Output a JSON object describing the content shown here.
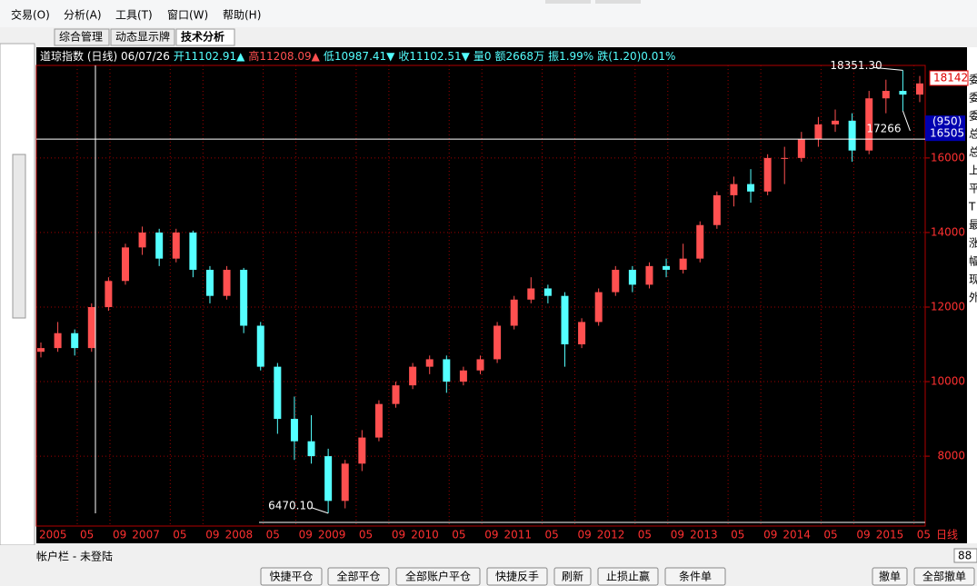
{
  "menu": [
    "交易(O)",
    "分析(A)",
    "工具(T)",
    "窗口(W)",
    "帮助(H)"
  ],
  "tabs": [
    "综合管理",
    "动态显示牌",
    "技术分析"
  ],
  "info_line": [
    {
      "text": "道琼指数 (日线) 06/07/26",
      "color": "#ffffff"
    },
    {
      "text": "开11102.91▲",
      "color": "#54ffff"
    },
    {
      "text": "高11208.09▲",
      "color": "#ff5050"
    },
    {
      "text": "低10987.41▼",
      "color": "#54ffff"
    },
    {
      "text": "收11102.51▼",
      "color": "#54ffff"
    },
    {
      "text": "量0",
      "color": "#54ffff"
    },
    {
      "text": "额2668万",
      "color": "#54ffff"
    },
    {
      "text": "振1.99%",
      "color": "#54ffff"
    },
    {
      "text": "跌(1.20)0.01%",
      "color": "#54ffff"
    }
  ],
  "chart_data": {
    "type": "candlestick",
    "ylim": [
      6150,
      18410
    ],
    "yticks": [
      8000,
      10000,
      12000,
      14000,
      16000
    ],
    "up_color": "#ff5050",
    "down_color": "#54ffff",
    "grid": true,
    "x_labels": [
      "2005",
      "05",
      "09",
      "2007",
      "05",
      "09",
      "2008",
      "05",
      "09",
      "2009",
      "05",
      "09",
      "2010",
      "05",
      "09",
      "2011",
      "05",
      "09",
      "2012",
      "05",
      "09",
      "2013",
      "05",
      "09",
      "2014",
      "05",
      "09",
      "2015",
      "05"
    ],
    "period_label": "日线",
    "ohlc": [
      [
        10800,
        11050,
        10650,
        10900
      ],
      [
        10900,
        11600,
        10800,
        11300
      ],
      [
        11300,
        11400,
        10700,
        10900
      ],
      [
        10900,
        12100,
        10800,
        12000
      ],
      [
        12000,
        12800,
        11900,
        12700
      ],
      [
        12700,
        13700,
        12600,
        13600
      ],
      [
        13600,
        14160,
        13400,
        14000
      ],
      [
        14000,
        14100,
        13100,
        13300
      ],
      [
        13300,
        14100,
        13200,
        14000
      ],
      [
        14000,
        14050,
        12800,
        13000
      ],
      [
        13000,
        13100,
        12100,
        12300
      ],
      [
        12300,
        13100,
        12200,
        13000
      ],
      [
        13000,
        13050,
        11300,
        11500
      ],
      [
        11500,
        11600,
        10300,
        10400
      ],
      [
        10400,
        10500,
        8600,
        9000
      ],
      [
        9000,
        9600,
        7900,
        8400
      ],
      [
        8400,
        9100,
        7800,
        8000
      ],
      [
        8000,
        8200,
        6470.1,
        6800
      ],
      [
        6800,
        7900,
        6600,
        7800
      ],
      [
        7800,
        8700,
        7600,
        8500
      ],
      [
        8500,
        9500,
        8400,
        9400
      ],
      [
        9400,
        10000,
        9300,
        9900
      ],
      [
        9900,
        10500,
        9800,
        10400
      ],
      [
        10400,
        10700,
        10200,
        10600
      ],
      [
        10600,
        10700,
        9700,
        10000
      ],
      [
        10000,
        10400,
        9900,
        10300
      ],
      [
        10300,
        10700,
        10200,
        10600
      ],
      [
        10600,
        11600,
        10500,
        11500
      ],
      [
        11500,
        12300,
        11400,
        12200
      ],
      [
        12200,
        12800,
        12100,
        12500
      ],
      [
        12500,
        12600,
        12100,
        12300
      ],
      [
        12300,
        12400,
        10400,
        11000
      ],
      [
        11000,
        11700,
        10900,
        11600
      ],
      [
        11600,
        12500,
        11500,
        12400
      ],
      [
        12400,
        13100,
        12300,
        13000
      ],
      [
        13000,
        13100,
        12400,
        12600
      ],
      [
        12600,
        13200,
        12500,
        13100
      ],
      [
        13100,
        13300,
        12800,
        13000
      ],
      [
        13000,
        13700,
        12900,
        13300
      ],
      [
        13300,
        14300,
        13200,
        14200
      ],
      [
        14200,
        15100,
        14100,
        15000
      ],
      [
        15000,
        15500,
        14700,
        15300
      ],
      [
        15300,
        15700,
        14800,
        15100
      ],
      [
        15100,
        16100,
        15000,
        16000
      ],
      [
        16000,
        16300,
        15300,
        16000
      ],
      [
        16000,
        16700,
        15900,
        16500
      ],
      [
        16500,
        17100,
        16300,
        16900
      ],
      [
        16900,
        17300,
        16700,
        17000
      ],
      [
        17000,
        17200,
        15900,
        16200
      ],
      [
        16200,
        17800,
        16100,
        17600
      ],
      [
        17600,
        18100,
        17200,
        17800
      ],
      [
        17800,
        18351.3,
        17266,
        17700
      ],
      [
        17700,
        18200,
        17500,
        18000
      ]
    ],
    "annotations": [
      {
        "text": "18351.30",
        "value": 18351.3
      },
      {
        "text": "17266",
        "value": 17266
      },
      {
        "text": "6470.10",
        "value": 6470.1
      }
    ],
    "last_price": {
      "value": 18142,
      "label": "18142"
    },
    "crosshair": {
      "value": 16505,
      "label": "16505",
      "change_label": "(950)"
    }
  },
  "side_labels": [
    "委",
    "委",
    "委",
    "总",
    "总",
    "上",
    "平",
    "T",
    "最",
    "涨",
    "幅",
    "现",
    "外"
  ],
  "account_bar": "帐户栏 - 未登陆",
  "page_size": "88",
  "buttons": [
    "快捷平仓",
    "全部平仓",
    "全部账户平仓",
    "快捷反手",
    "刷新",
    "止损止赢",
    "条件单",
    "撤单",
    "全部撤单"
  ]
}
